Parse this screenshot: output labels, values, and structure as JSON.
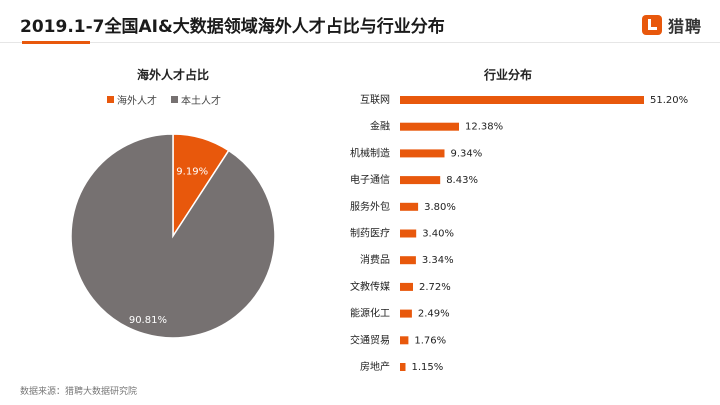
{
  "header": {
    "title": "2019.1-7全国AI&大数据领域海外人才占比与行业分布",
    "logo_text": "猎聘",
    "accent_color": "#e8580c"
  },
  "source": "数据来源：猎聘大数据研究院",
  "chart_data": [
    {
      "type": "pie",
      "title": "海外人才占比",
      "labels": [
        "海外人才",
        "本土人才"
      ],
      "values": [
        9.19,
        90.81
      ],
      "value_labels": [
        "9.19%",
        "90.81%"
      ],
      "colors": [
        "#e8580c",
        "#767171"
      ],
      "legend": "top"
    },
    {
      "type": "bar",
      "orientation": "horizontal",
      "title": "行业分布",
      "categories": [
        "互联网",
        "金融",
        "机械制造",
        "电子通信",
        "服务外包",
        "制药医疗",
        "消费品",
        "文教传媒",
        "能源化工",
        "交通贸易",
        "房地产"
      ],
      "values": [
        51.2,
        12.38,
        9.34,
        8.43,
        3.8,
        3.4,
        3.34,
        2.72,
        2.49,
        1.76,
        1.15
      ],
      "value_labels": [
        "51.20%",
        "12.38%",
        "9.34%",
        "8.43%",
        "3.80%",
        "3.40%",
        "3.34%",
        "2.72%",
        "2.49%",
        "1.76%",
        "1.15%"
      ],
      "color": "#e8580c",
      "grid": false
    }
  ]
}
